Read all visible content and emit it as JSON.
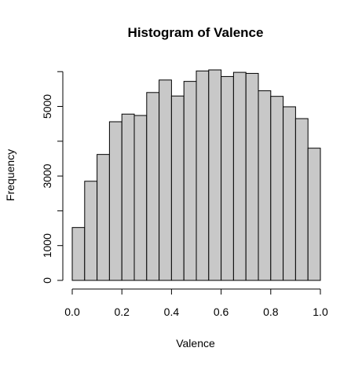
{
  "chart_data": {
    "type": "bar",
    "title": "Histogram of Valence",
    "xlabel": "Valence",
    "ylabel": "Frequency",
    "bins": [
      {
        "x0": 0.0,
        "x1": 0.05,
        "count": 1520
      },
      {
        "x0": 0.05,
        "x1": 0.1,
        "count": 2850
      },
      {
        "x0": 0.1,
        "x1": 0.15,
        "count": 3620
      },
      {
        "x0": 0.15,
        "x1": 0.2,
        "count": 4560
      },
      {
        "x0": 0.2,
        "x1": 0.25,
        "count": 4780
      },
      {
        "x0": 0.25,
        "x1": 0.3,
        "count": 4740
      },
      {
        "x0": 0.3,
        "x1": 0.35,
        "count": 5400
      },
      {
        "x0": 0.35,
        "x1": 0.4,
        "count": 5760
      },
      {
        "x0": 0.4,
        "x1": 0.45,
        "count": 5300
      },
      {
        "x0": 0.45,
        "x1": 0.5,
        "count": 5720
      },
      {
        "x0": 0.5,
        "x1": 0.55,
        "count": 6020
      },
      {
        "x0": 0.55,
        "x1": 0.6,
        "count": 6050
      },
      {
        "x0": 0.6,
        "x1": 0.65,
        "count": 5860
      },
      {
        "x0": 0.65,
        "x1": 0.7,
        "count": 5980
      },
      {
        "x0": 0.7,
        "x1": 0.75,
        "count": 5950
      },
      {
        "x0": 0.75,
        "x1": 0.8,
        "count": 5450
      },
      {
        "x0": 0.8,
        "x1": 0.85,
        "count": 5290
      },
      {
        "x0": 0.85,
        "x1": 0.9,
        "count": 4990
      },
      {
        "x0": 0.9,
        "x1": 0.95,
        "count": 4650
      },
      {
        "x0": 0.95,
        "x1": 1.0,
        "count": 3800
      }
    ],
    "xlim": [
      0,
      1
    ],
    "ylim": [
      0,
      6050
    ],
    "xticks": [
      0.0,
      0.2,
      0.4,
      0.6,
      0.8,
      1.0
    ],
    "xtick_labels": [
      "0.0",
      "0.2",
      "0.4",
      "0.6",
      "0.8",
      "1.0"
    ],
    "yticks": [
      0,
      1000,
      2000,
      3000,
      4000,
      5000,
      6000
    ],
    "ytick_labels": [
      "0",
      "1000",
      "",
      "3000",
      "",
      "5000",
      ""
    ],
    "bar_color": "#c8c8c8",
    "grid": false,
    "legend": "none"
  }
}
